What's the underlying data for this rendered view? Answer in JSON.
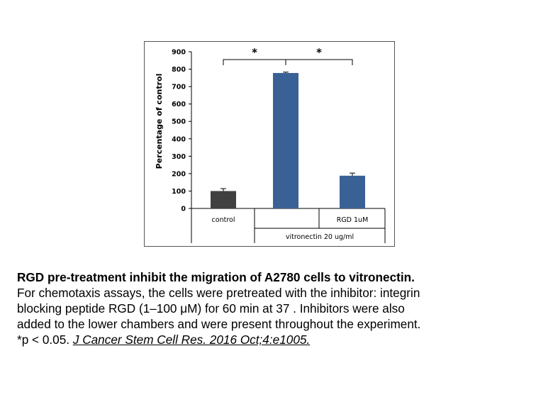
{
  "chart_data": {
    "type": "bar",
    "ylabel": "Percentage of control",
    "ylim": [
      0,
      900
    ],
    "yticks": [
      "0",
      "100",
      "200",
      "300",
      "400",
      "500",
      "600",
      "700",
      "800",
      "900"
    ],
    "grid": false,
    "categories": [
      "control",
      "vitronectin",
      "RGD 1uM"
    ],
    "values": [
      100,
      778,
      188
    ],
    "errors": [
      14,
      5,
      15
    ],
    "colors": [
      "#404040",
      "#3a6196",
      "#3a6196"
    ],
    "group_labels": {
      "control": "control",
      "rgd": "RGD 1uM",
      "vitronectin": "vitronectin 20 ug/ml"
    },
    "significance": [
      {
        "from": 0,
        "to": 1,
        "label": "*"
      },
      {
        "from": 1,
        "to": 2,
        "label": "*"
      }
    ]
  },
  "caption": {
    "title": "RGD pre-treatment inhibit the migration of A2780 cells to vitronectin.",
    "lines": [
      "For chemotaxis assays, the cells were pretreated with the inhibitor: integrin",
      "blocking peptide RGD (1–100 μM) for 60 min at 37 . Inhibitors were also",
      "added to the lower chambers and were present throughout the experiment."
    ],
    "pvalue": "*p < 0.05. ",
    "citation": "J Cancer Stem Cell Res. 2016 Oct;4:e1005."
  }
}
